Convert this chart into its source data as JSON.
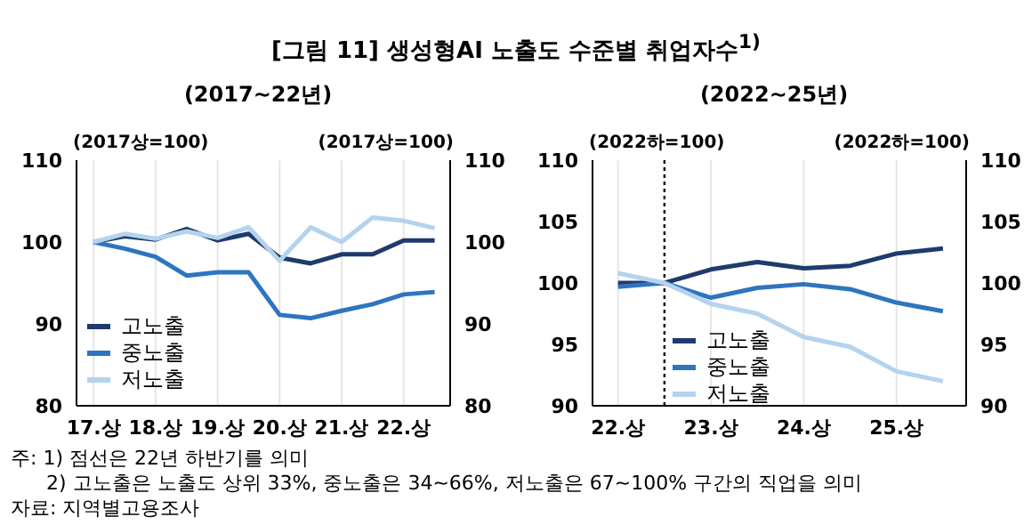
{
  "chart_data": [
    {
      "type": "line",
      "title": "[그림 11] 생성형AI 노출도 수준별 취업자수$^{1)}$",
      "subtitle": "(2017~22년)",
      "ylabel": "(2017상=100)",
      "y2label": "(2017상=100)",
      "categories": [
        "17.상",
        null,
        "18.상",
        null,
        "19.상",
        null,
        "20.상",
        null,
        "21.상",
        null,
        "22.상",
        null
      ],
      "ylim": [
        80,
        110
      ],
      "yticks": [
        80,
        90,
        100,
        110
      ],
      "y2lim": [
        80,
        110
      ],
      "y2ticks": [
        80,
        90,
        100,
        110
      ],
      "grid": "x",
      "legend": "bottom left",
      "line_style": "solid",
      "series": [
        {
          "name": "고노출",
          "color": "#1f3a6e",
          "values": [
            100,
            100.7,
            100.3,
            101.6,
            100.2,
            101,
            98.1,
            97.4,
            98.5,
            98.5,
            100.2,
            100.2
          ]
        },
        {
          "name": "중노출",
          "color": "#2e75c0",
          "values": [
            100,
            99.2,
            98.2,
            95.9,
            96.3,
            96.3,
            91.1,
            90.7,
            91.6,
            92.4,
            93.6,
            93.9
          ]
        },
        {
          "name": "저노출",
          "color": "#b4d3ee",
          "values": [
            100,
            101,
            100.4,
            101.3,
            100.5,
            101.8,
            97.7,
            101.8,
            100,
            103,
            102.6,
            101.7
          ]
        }
      ],
      "annotations": [
        "주: 1) 점선은 22년 하반기를 의미",
        "2) 고노출은 노출도 상위 33%, 중노출은 34~66%, 저노출은 67~100% 구간의 직업을 의미",
        "자료: 지역별고용조사"
      ]
    },
    {
      "type": "line",
      "subtitle": "(2022~25년)",
      "ylabel": "(2022하=100)",
      "y2label": "(2022하=100)",
      "categories": [
        "22.상",
        null,
        "23.상",
        null,
        "24.상",
        null,
        "25.상",
        null
      ],
      "ylim": [
        90,
        110
      ],
      "yticks": [
        90,
        95,
        100,
        105,
        110
      ],
      "y2lim": [
        90,
        110
      ],
      "y2ticks": [
        90,
        95,
        100,
        105,
        110
      ],
      "grid": "x",
      "legend": "bottom",
      "line_style": "solid",
      "series": [
        {
          "name": "고노출",
          "color": "#1f3a6e",
          "values": [
            100,
            100,
            101.1,
            101.7,
            101.2,
            101.4,
            102.4,
            102.8
          ]
        },
        {
          "name": "중노출",
          "color": "#2e75c0",
          "values": [
            99.7,
            100,
            98.8,
            99.6,
            99.9,
            99.5,
            98.4,
            97.7
          ]
        },
        {
          "name": "저노출",
          "color": "#b4d3ee",
          "values": [
            100.8,
            100,
            98.3,
            97.5,
            95.6,
            94.8,
            92.8,
            92
          ]
        }
      ]
    }
  ]
}
